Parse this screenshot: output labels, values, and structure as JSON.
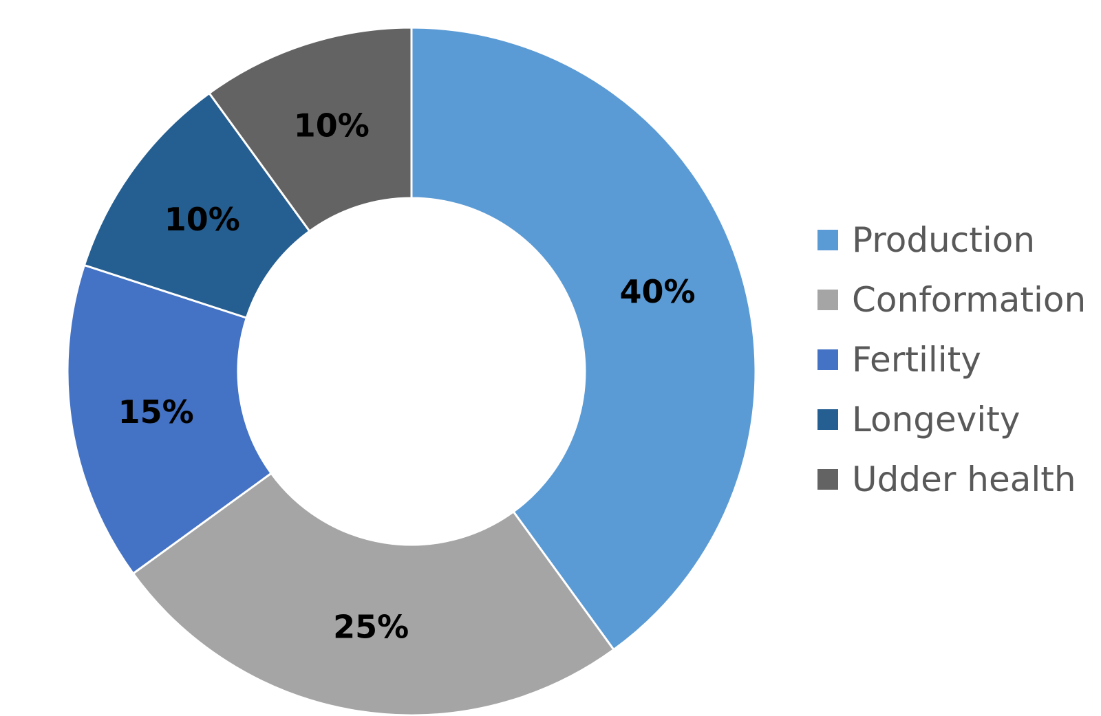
{
  "chart_data": {
    "type": "pie",
    "variant": "donut",
    "categories": [
      "Production",
      "Conformation",
      "Fertility",
      "Longevity",
      "Udder health"
    ],
    "values": [
      40,
      25,
      15,
      10,
      10
    ],
    "data_labels": [
      "40%",
      "25%",
      "15%",
      "10%",
      "10%"
    ],
    "colors": [
      "#5b9bd5",
      "#a5a5a5",
      "#4472c4",
      "#255e91",
      "#636363"
    ],
    "start_angle_deg": 0,
    "direction": "clockwise",
    "legend_position": "right",
    "title": ""
  }
}
